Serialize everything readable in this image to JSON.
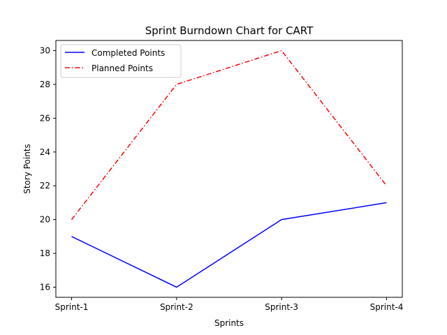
{
  "chart_data": {
    "type": "line",
    "title": "Sprint Burndown Chart for CART",
    "xlabel": "Sprints",
    "ylabel": "Story Points",
    "categories": [
      "Sprint-1",
      "Sprint-2",
      "Sprint-3",
      "Sprint-4"
    ],
    "ylim": [
      15.4,
      30.6
    ],
    "yticks": [
      16,
      18,
      20,
      22,
      24,
      26,
      28,
      30
    ],
    "grid": false,
    "legend_position": "top-left",
    "series": [
      {
        "name": "Completed Points",
        "values": [
          19,
          16,
          20,
          21
        ],
        "color": "#0000ff",
        "style": "solid"
      },
      {
        "name": "Planned Points",
        "values": [
          20,
          28,
          30,
          22
        ],
        "color": "#ff0000",
        "style": "dashdot"
      }
    ]
  }
}
